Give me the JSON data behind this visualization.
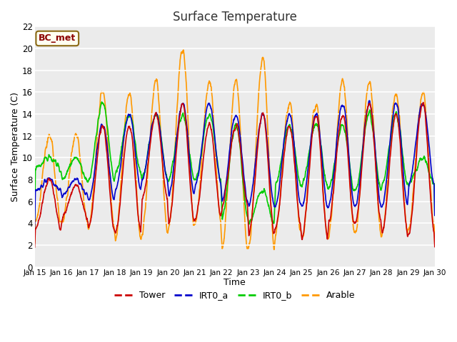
{
  "title": "Surface Temperature",
  "xlabel": "Time",
  "ylabel": "Surface Temperature (C)",
  "annotation": "BC_met",
  "ylim": [
    0,
    22
  ],
  "xlim": [
    0,
    15
  ],
  "xtick_labels": [
    "Jan 15",
    "Jan 16",
    "Jan 17",
    "Jan 18",
    "Jan 19",
    "Jan 20",
    "Jan 21",
    "Jan 22",
    "Jan 23",
    "Jan 24",
    "Jan 25",
    "Jan 26",
    "Jan 27",
    "Jan 28",
    "Jan 29",
    "Jan 30"
  ],
  "colors": {
    "Tower": "#cc0000",
    "IRT0_a": "#0000cc",
    "IRT0_b": "#00cc00",
    "Arable": "#ff9900"
  },
  "fig_bg_color": "#ffffff",
  "plot_bg_color": "#ebebeb",
  "linewidth": 1.2,
  "grid_color": "#ffffff"
}
